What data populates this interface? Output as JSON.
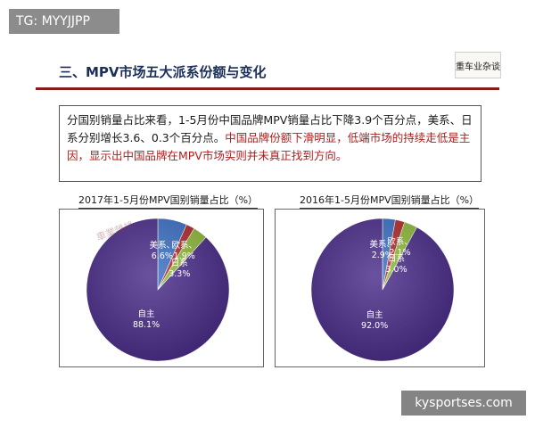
{
  "overlay_tag": "TG: MYYJJPP",
  "overlay_site": "kysportses.com",
  "heading": "三、MPV市场五大派系份额与变化",
  "logo_text": "重车业杂谈",
  "summary": {
    "part1": "分国别销量占比来看，1-5月份中国品牌MPV销量占比下降3.9个百分点，美系、日系分别增长3.6、0.3个百分点。",
    "part2": "中国品牌份额下滑明显，低端市场的持续走低是主因，显示出中国品牌在MPV市场实则并未真正找到方向。"
  },
  "colors": {
    "china": "#4a2c8a",
    "us": "#3a6fc4",
    "europe": "#b02a2a",
    "japan": "#8fba3a"
  },
  "chart_data": [
    {
      "type": "pie",
      "title": "2017年1-5月份MPV国别销量占比（%）",
      "slices": [
        {
          "name": "美系",
          "value": 6.6,
          "label": "6.6%",
          "color_key": "us"
        },
        {
          "name": "欧系",
          "value": 1.9,
          "label": "1.9%",
          "color_key": "europe"
        },
        {
          "name": "日系",
          "value": 3.3,
          "label": "3.3%",
          "color_key": "japan"
        },
        {
          "name": "自主",
          "value": 88.1,
          "label": "88.1%",
          "color_key": "china"
        }
      ]
    },
    {
      "type": "pie",
      "title": "2016年1-5月份MPV国别销量占比（%）",
      "slices": [
        {
          "name": "美系",
          "value": 2.9,
          "label": "2.9%",
          "color_key": "us"
        },
        {
          "name": "欧系",
          "value": 2.1,
          "label": "2.1%",
          "color_key": "europe"
        },
        {
          "name": "日系",
          "value": 3.0,
          "label": "3.0%",
          "color_key": "japan"
        },
        {
          "name": "自主",
          "value": 92.0,
          "label": "92.0%",
          "color_key": "china"
        }
      ]
    }
  ]
}
